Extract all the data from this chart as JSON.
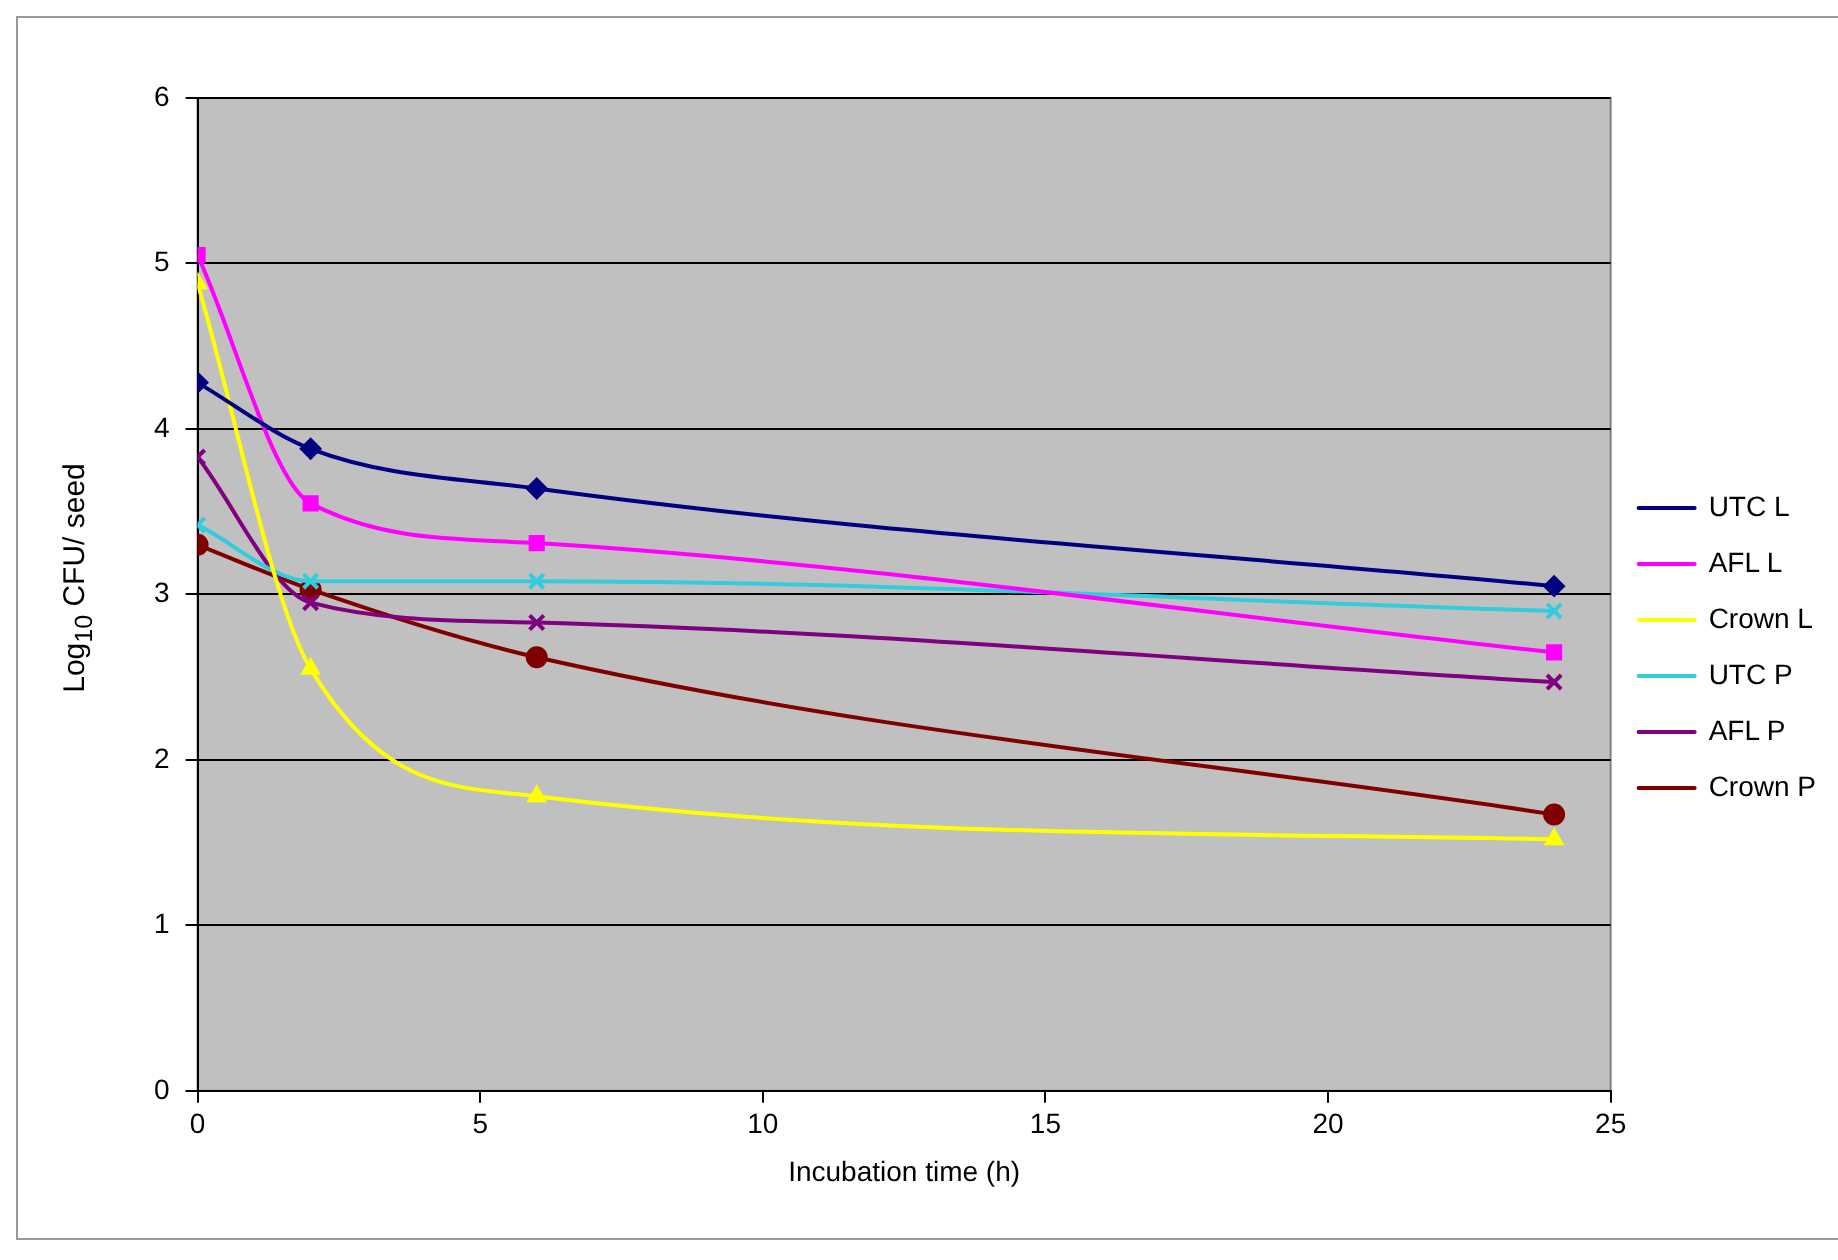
{
  "chart_data": {
    "type": "line",
    "xlabel": "Incubation time (h)",
    "ylabel": "Log$_{10}$ CFU/ seed",
    "x": [
      0,
      2,
      6,
      24
    ],
    "xlim": [
      0,
      25
    ],
    "xticks": [
      0,
      5,
      10,
      15,
      20,
      25
    ],
    "ylim": [
      0,
      6
    ],
    "yticks": [
      0,
      1,
      2,
      3,
      4,
      5,
      6
    ],
    "grid": "y",
    "legend": "right",
    "line_style": "solid",
    "series": [
      {
        "name": "UTC L",
        "color": "#000080",
        "marker": "diamond",
        "values": [
          4.28,
          3.88,
          3.64,
          3.05
        ]
      },
      {
        "name": "AFL L",
        "color": "#ff00ff",
        "marker": "square",
        "values": [
          5.05,
          3.55,
          3.31,
          2.65
        ]
      },
      {
        "name": "Crown L",
        "color": "#ffff00",
        "marker": "triangle",
        "values": [
          4.88,
          2.55,
          1.78,
          1.52
        ]
      },
      {
        "name": "UTC P",
        "color": "#33ccdd",
        "marker": "cross",
        "values": [
          3.42,
          3.08,
          3.08,
          2.9
        ]
      },
      {
        "name": "AFL P",
        "color": "#800080",
        "marker": "cross",
        "values": [
          3.83,
          2.95,
          2.83,
          2.47
        ]
      },
      {
        "name": "Crown P",
        "color": "#800000",
        "marker": "circle",
        "values": [
          3.3,
          3.03,
          2.62,
          1.67
        ]
      }
    ]
  }
}
